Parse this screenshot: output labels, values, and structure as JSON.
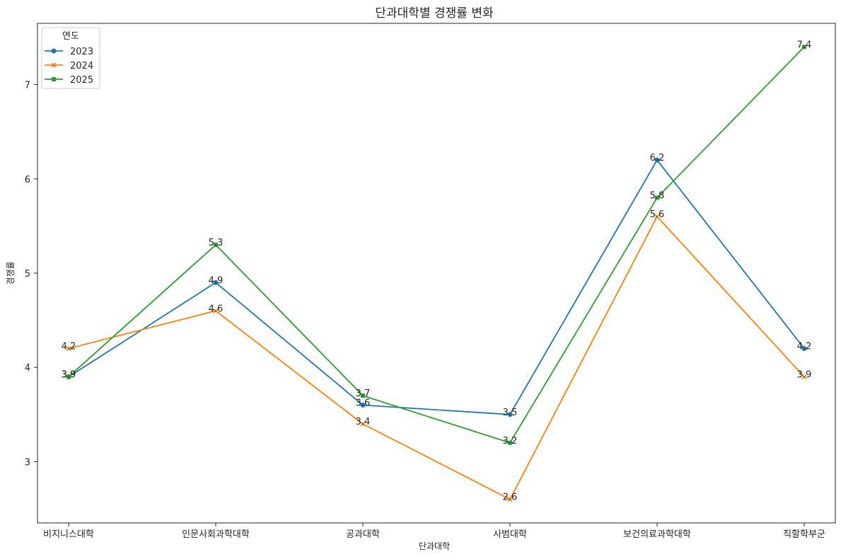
{
  "chart_data": {
    "type": "line",
    "title": "단과대학별 경쟁률 변화",
    "xlabel": "단과대학",
    "ylabel": "경쟁률",
    "categories": [
      "비지니스대학",
      "인문사회과학대학",
      "공과대학",
      "사범대학",
      "보건의료과학대학",
      "직할학부군"
    ],
    "ylim": [
      2.35,
      7.65
    ],
    "yticks": [
      3,
      4,
      5,
      6,
      7
    ],
    "grid": false,
    "legend": {
      "title": "연도",
      "placement": "top-left"
    },
    "series": [
      {
        "name": "2023",
        "color": "#1f77b4",
        "marker": "circle",
        "values": [
          3.9,
          4.9,
          3.6,
          3.5,
          6.2,
          4.2
        ]
      },
      {
        "name": "2024",
        "color": "#ff7f0e",
        "marker": "x",
        "values": [
          4.2,
          4.6,
          3.4,
          2.6,
          5.6,
          3.9
        ]
      },
      {
        "name": "2025",
        "color": "#2ca02c",
        "marker": "square",
        "values": [
          3.9,
          5.3,
          3.7,
          3.2,
          5.8,
          7.4
        ]
      }
    ]
  }
}
